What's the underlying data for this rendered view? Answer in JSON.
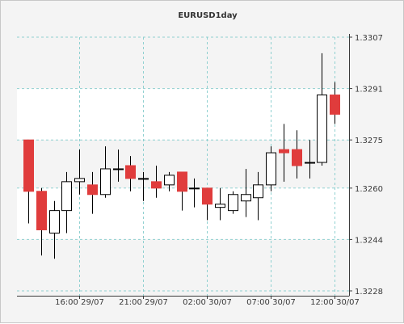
{
  "chart_data": {
    "type": "candlestick",
    "title": "EURUSD1day",
    "ylim": [
      1.3228,
      1.3307
    ],
    "y_ticks": [
      "1.3307",
      "1.3291",
      "1.3275",
      "1.3260",
      "1.3244",
      "1.3228"
    ],
    "x_ticks": [
      "16:00 29/07",
      "21:00 29/07",
      "02:00 30/07",
      "07:00 30/07",
      "12:00 30/07"
    ],
    "grid": true,
    "colors": {
      "bullish_fill": "#ffffff",
      "bearish_fill": "#e03c3c",
      "outline": "#000000",
      "grid": "#8fd0d0",
      "alt_band": "#f4f4f4",
      "plot_bg": "#ffffff"
    },
    "candles": [
      {
        "open": 1.3275,
        "high": 1.3275,
        "low": 1.3249,
        "close": 1.3259
      },
      {
        "open": 1.3259,
        "high": 1.326,
        "low": 1.3239,
        "close": 1.3247
      },
      {
        "open": 1.3246,
        "high": 1.3256,
        "low": 1.3238,
        "close": 1.3253
      },
      {
        "open": 1.3253,
        "high": 1.3265,
        "low": 1.3246,
        "close": 1.3262
      },
      {
        "open": 1.3262,
        "high": 1.3272,
        "low": 1.3258,
        "close": 1.3263
      },
      {
        "open": 1.3261,
        "high": 1.3265,
        "low": 1.3252,
        "close": 1.3258
      },
      {
        "open": 1.3258,
        "high": 1.3273,
        "low": 1.3257,
        "close": 1.3266
      },
      {
        "open": 1.3266,
        "high": 1.3272,
        "low": 1.3262,
        "close": 1.3266
      },
      {
        "open": 1.3267,
        "high": 1.327,
        "low": 1.3259,
        "close": 1.3263
      },
      {
        "open": 1.3263,
        "high": 1.3265,
        "low": 1.3256,
        "close": 1.3263
      },
      {
        "open": 1.3262,
        "high": 1.3267,
        "low": 1.3257,
        "close": 1.326
      },
      {
        "open": 1.3261,
        "high": 1.3265,
        "low": 1.3259,
        "close": 1.3264
      },
      {
        "open": 1.3265,
        "high": 1.3265,
        "low": 1.3253,
        "close": 1.3259
      },
      {
        "open": 1.326,
        "high": 1.3263,
        "low": 1.3254,
        "close": 1.326
      },
      {
        "open": 1.326,
        "high": 1.326,
        "low": 1.325,
        "close": 1.3255
      },
      {
        "open": 1.3254,
        "high": 1.326,
        "low": 1.325,
        "close": 1.3255
      },
      {
        "open": 1.3253,
        "high": 1.3259,
        "low": 1.3252,
        "close": 1.3258
      },
      {
        "open": 1.3256,
        "high": 1.3266,
        "low": 1.3251,
        "close": 1.3258
      },
      {
        "open": 1.3257,
        "high": 1.3265,
        "low": 1.325,
        "close": 1.3261
      },
      {
        "open": 1.3261,
        "high": 1.3273,
        "low": 1.3259,
        "close": 1.3271
      },
      {
        "open": 1.3272,
        "high": 1.328,
        "low": 1.3262,
        "close": 1.3271
      },
      {
        "open": 1.3272,
        "high": 1.3278,
        "low": 1.3263,
        "close": 1.3267
      },
      {
        "open": 1.3268,
        "high": 1.3275,
        "low": 1.3263,
        "close": 1.3268
      },
      {
        "open": 1.3268,
        "high": 1.3302,
        "low": 1.3267,
        "close": 1.3289
      },
      {
        "open": 1.3289,
        "high": 1.3293,
        "low": 1.328,
        "close": 1.3283
      }
    ]
  }
}
